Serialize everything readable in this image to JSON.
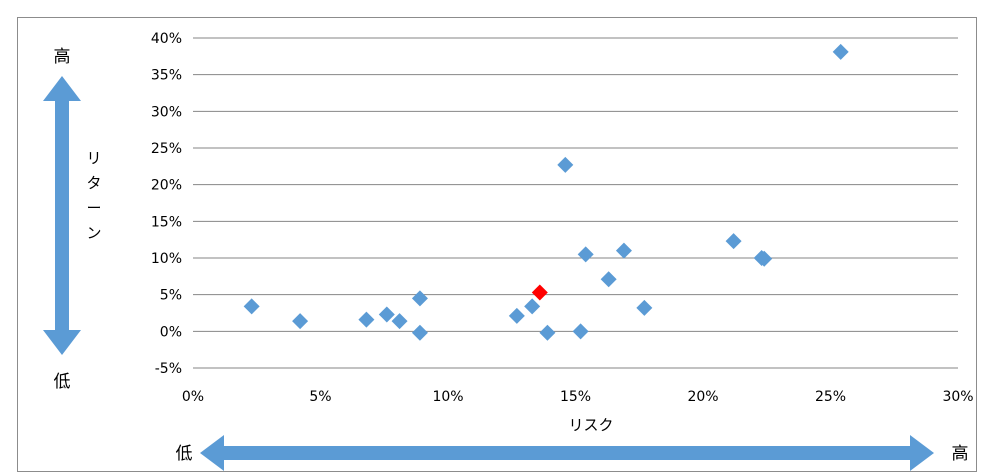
{
  "chart_data": {
    "type": "scatter",
    "title": "",
    "xlabel": "リスク",
    "ylabel": "リターン",
    "xlim": [
      0,
      0.3
    ],
    "ylim": [
      -0.05,
      0.4
    ],
    "x_ticks": [
      "0%",
      "5%",
      "10%",
      "15%",
      "20%",
      "25%",
      "30%"
    ],
    "y_ticks": [
      "-5%",
      "0%",
      "5%",
      "10%",
      "15%",
      "20%",
      "25%",
      "30%",
      "35%",
      "40%"
    ],
    "grid": "horizontal",
    "legend": "none",
    "series": [
      {
        "color": "#5B9BD5",
        "marker": "diamond",
        "points": [
          [
            0.023,
            0.034
          ],
          [
            0.042,
            0.014
          ],
          [
            0.068,
            0.016
          ],
          [
            0.076,
            0.023
          ],
          [
            0.081,
            0.014
          ],
          [
            0.089,
            0.045
          ],
          [
            0.089,
            -0.002
          ],
          [
            0.127,
            0.021
          ],
          [
            0.133,
            0.034
          ],
          [
            0.139,
            -0.002
          ],
          [
            0.146,
            0.227
          ],
          [
            0.152,
            0.0
          ],
          [
            0.154,
            0.105
          ],
          [
            0.163,
            0.071
          ],
          [
            0.169,
            0.11
          ],
          [
            0.177,
            0.032
          ],
          [
            0.212,
            0.123
          ],
          [
            0.223,
            0.1
          ],
          [
            0.224,
            0.099
          ],
          [
            0.254,
            0.381
          ]
        ]
      },
      {
        "color": "#FF0000",
        "marker": "diamond",
        "points": [
          [
            0.136,
            0.053
          ]
        ]
      }
    ],
    "annotations": {
      "y_high": "高",
      "y_low": "低",
      "x_high": "高",
      "x_low": "低"
    },
    "arrow_color": "#5B9BD5"
  }
}
